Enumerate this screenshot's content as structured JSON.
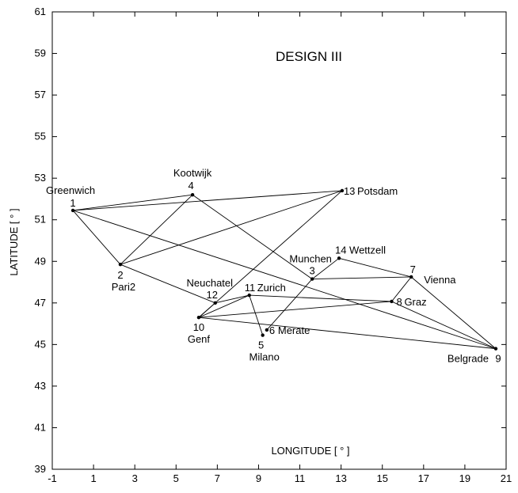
{
  "chart_data": {
    "type": "network",
    "title": "DESIGN  III",
    "xlabel": "LONGITUDE [ ° ]",
    "ylabel": "LATITUDE [ ° ]",
    "xlim": [
      -1,
      21
    ],
    "ylim": [
      39,
      61
    ],
    "xticks": [
      -1,
      1,
      3,
      5,
      7,
      9,
      11,
      13,
      15,
      17,
      19,
      21
    ],
    "yticks": [
      39,
      41,
      43,
      45,
      47,
      49,
      51,
      53,
      55,
      57,
      59,
      61
    ],
    "nodes": [
      {
        "id": 1,
        "name": "Greenwich",
        "lon": 0.0,
        "lat": 51.45
      },
      {
        "id": 2,
        "name": "Pari2",
        "lon": 2.3,
        "lat": 48.85
      },
      {
        "id": 3,
        "name": "Munchen",
        "lon": 11.6,
        "lat": 48.15
      },
      {
        "id": 4,
        "name": "Kootwijk",
        "lon": 5.8,
        "lat": 52.2
      },
      {
        "id": 5,
        "name": "Milano",
        "lon": 9.2,
        "lat": 45.45
      },
      {
        "id": 6,
        "name": "Merate",
        "lon": 9.4,
        "lat": 45.7
      },
      {
        "id": 7,
        "name": "Vienna",
        "lon": 16.4,
        "lat": 48.25
      },
      {
        "id": 8,
        "name": "Graz",
        "lon": 15.45,
        "lat": 47.07
      },
      {
        "id": 9,
        "name": "Belgrade",
        "lon": 20.5,
        "lat": 44.8
      },
      {
        "id": 10,
        "name": "Genf",
        "lon": 6.1,
        "lat": 46.3
      },
      {
        "id": 11,
        "name": "Zurich",
        "lon": 8.55,
        "lat": 47.37
      },
      {
        "id": 12,
        "name": "Neuchatel",
        "lon": 6.9,
        "lat": 47.0
      },
      {
        "id": 13,
        "name": "Potsdam",
        "lon": 13.05,
        "lat": 52.4
      },
      {
        "id": 14,
        "name": "Wettzell",
        "lon": 12.9,
        "lat": 49.15
      }
    ],
    "edges": [
      [
        1,
        13
      ],
      [
        1,
        4
      ],
      [
        1,
        2
      ],
      [
        1,
        9
      ],
      [
        2,
        4
      ],
      [
        2,
        13
      ],
      [
        2,
        12
      ],
      [
        4,
        3
      ],
      [
        10,
        13
      ],
      [
        10,
        11
      ],
      [
        10,
        12
      ],
      [
        10,
        8
      ],
      [
        10,
        9
      ],
      [
        12,
        11
      ],
      [
        11,
        5
      ],
      [
        11,
        8
      ],
      [
        6,
        3
      ],
      [
        3,
        14
      ],
      [
        3,
        7
      ],
      [
        14,
        7
      ],
      [
        7,
        8
      ],
      [
        7,
        9
      ],
      [
        8,
        9
      ]
    ]
  }
}
